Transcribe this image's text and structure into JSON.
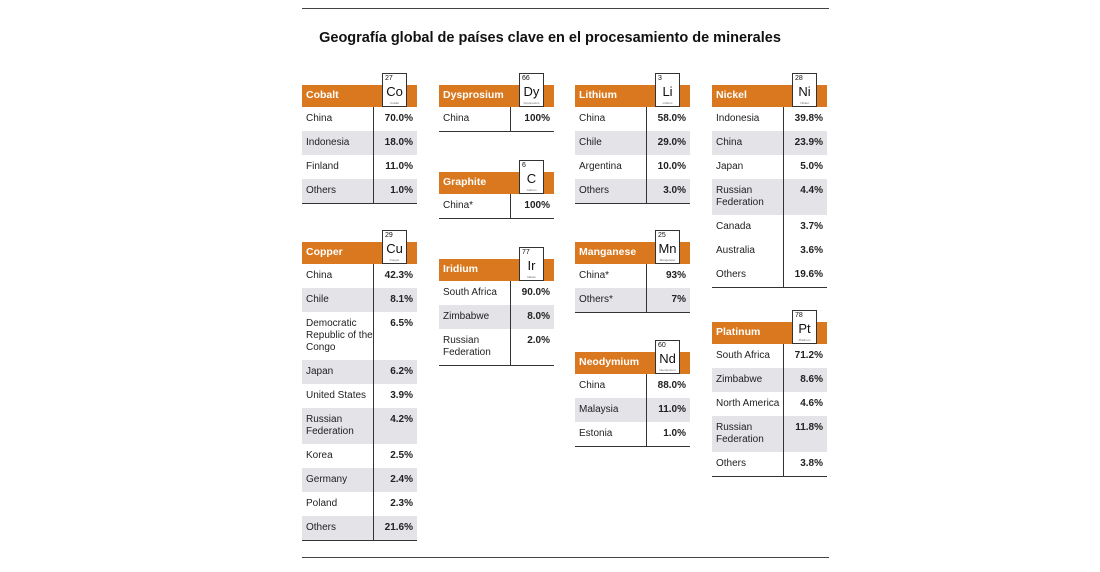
{
  "title": "Geografía global de países clave en el procesamiento de minerales",
  "chart_data": {
    "type": "table",
    "title": "Geografía global de países clave en el procesamiento de minerales",
    "colors": {
      "header": "#d9781e",
      "shade": "#e3e3e8",
      "rule": "#333333"
    },
    "minerals": [
      {
        "name": "Cobalt",
        "symbol": "Co",
        "number": "27",
        "element_name": "Cobalt",
        "rows": [
          {
            "country": "China",
            "value": "70.0%"
          },
          {
            "country": "Indonesia",
            "value": "18.0%"
          },
          {
            "country": "Finland",
            "value": "11.0%"
          },
          {
            "country": "Others",
            "value": "1.0%"
          }
        ]
      },
      {
        "name": "Copper",
        "symbol": "Cu",
        "number": "29",
        "element_name": "Copper",
        "rows": [
          {
            "country": "China",
            "value": "42.3%"
          },
          {
            "country": "Chile",
            "value": "8.1%"
          },
          {
            "country": "Democratic Republic of the Congo",
            "value": "6.5%"
          },
          {
            "country": "Japan",
            "value": "6.2%"
          },
          {
            "country": "United States",
            "value": "3.9%"
          },
          {
            "country": "Russian Federation",
            "value": "4.2%"
          },
          {
            "country": "Korea",
            "value": "2.5%"
          },
          {
            "country": "Germany",
            "value": "2.4%"
          },
          {
            "country": "Poland",
            "value": "2.3%"
          },
          {
            "country": "Others",
            "value": "21.6%"
          }
        ]
      },
      {
        "name": "Dysprosium",
        "symbol": "Dy",
        "number": "66",
        "element_name": "Dysprosium",
        "rows": [
          {
            "country": "China",
            "value": "100%"
          }
        ]
      },
      {
        "name": "Graphite",
        "symbol": "C",
        "number": "6",
        "element_name": "Carbon",
        "rows": [
          {
            "country": "China*",
            "value": "100%"
          }
        ]
      },
      {
        "name": "Iridium",
        "symbol": "Ir",
        "number": "77",
        "element_name": "Iridium",
        "rows": [
          {
            "country": "South Africa",
            "value": "90.0%"
          },
          {
            "country": "Zimbabwe",
            "value": "8.0%"
          },
          {
            "country": "Russian Federation",
            "value": "2.0%"
          }
        ]
      },
      {
        "name": "Lithium",
        "symbol": "Li",
        "number": "3",
        "element_name": "Lithium",
        "rows": [
          {
            "country": "China",
            "value": "58.0%"
          },
          {
            "country": "Chile",
            "value": "29.0%"
          },
          {
            "country": "Argentina",
            "value": "10.0%"
          },
          {
            "country": "Others",
            "value": "3.0%"
          }
        ]
      },
      {
        "name": "Manganese",
        "symbol": "Mn",
        "number": "25",
        "element_name": "Manganese",
        "rows": [
          {
            "country": "China*",
            "value": "93%"
          },
          {
            "country": "Others*",
            "value": "7%"
          }
        ]
      },
      {
        "name": "Neodymium",
        "symbol": "Nd",
        "number": "60",
        "element_name": "Neodymium",
        "rows": [
          {
            "country": "China",
            "value": "88.0%"
          },
          {
            "country": "Malaysia",
            "value": "11.0%"
          },
          {
            "country": "Estonia",
            "value": "1.0%"
          }
        ]
      },
      {
        "name": "Nickel",
        "symbol": "Ni",
        "number": "28",
        "element_name": "Nickel",
        "rows": [
          {
            "country": "Indonesia",
            "value": "39.8%"
          },
          {
            "country": "China",
            "value": "23.9%"
          },
          {
            "country": "Japan",
            "value": "5.0%"
          },
          {
            "country": "Russian Federation",
            "value": "4.4%"
          },
          {
            "country": "Canada",
            "value": "3.7%"
          },
          {
            "country": "Australia",
            "value": "3.6%"
          },
          {
            "country": "Others",
            "value": "19.6%"
          }
        ]
      },
      {
        "name": "Platinum",
        "symbol": "Pt",
        "number": "78",
        "element_name": "Platinum",
        "rows": [
          {
            "country": "South Africa",
            "value": "71.2%"
          },
          {
            "country": "Zimbabwe",
            "value": "8.6%"
          },
          {
            "country": "North America",
            "value": "4.6%"
          },
          {
            "country": "Russian Federation",
            "value": "11.8%"
          },
          {
            "country": "Others",
            "value": "3.8%"
          }
        ]
      }
    ]
  }
}
